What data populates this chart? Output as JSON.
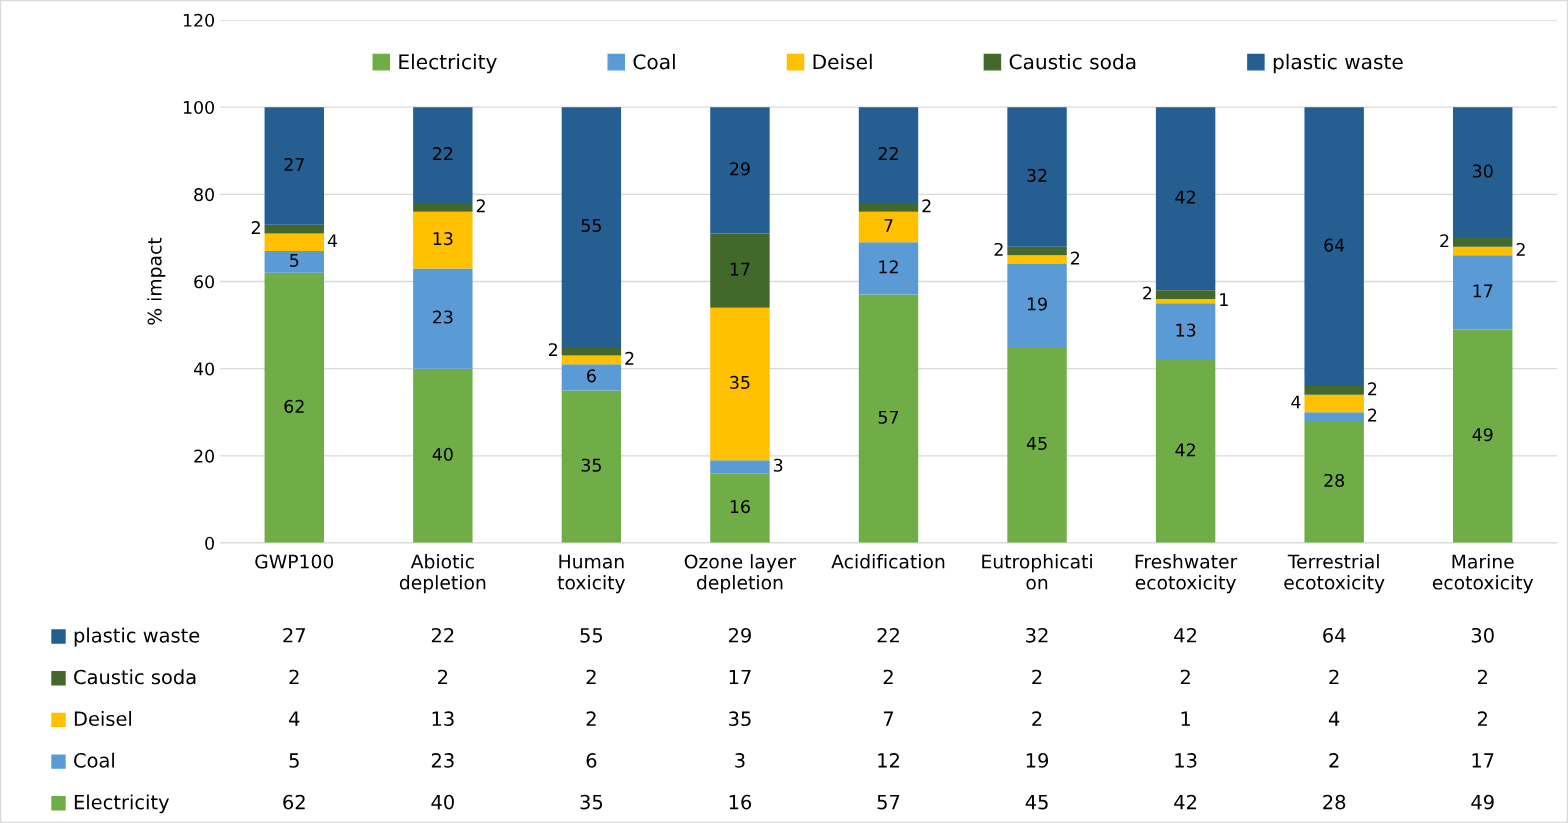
{
  "chart_data": {
    "type": "bar",
    "stacked": true,
    "ylabel": "% impact",
    "categories": [
      "GWP100",
      "Abiotic\ndepletion",
      "Human\ntoxicity",
      "Ozone layer\ndepletion",
      "Acidification",
      "Eutrophicati\non",
      "Freshwater\necotoxicity",
      "Terrestrial\necotoxicity",
      "Marine\necotoxicity"
    ],
    "series": [
      {
        "name": "Electricity",
        "color": "#70ad47",
        "values": [
          62,
          40,
          35,
          16,
          57,
          45,
          42,
          28,
          49
        ],
        "value_labels": [
          "62",
          "40",
          "35",
          "16",
          "57",
          "45",
          "42",
          "28",
          "49"
        ]
      },
      {
        "name": "Coal",
        "color": "#5b9bd5",
        "values": [
          5,
          23,
          6,
          3,
          12,
          19,
          13,
          2,
          17
        ],
        "value_labels": [
          "5",
          "23",
          "6",
          "3",
          "12",
          "19",
          "13",
          "2",
          "17"
        ]
      },
      {
        "name": "Deisel",
        "color": "#ffc000",
        "values": [
          4,
          13,
          2,
          35,
          7,
          2,
          1,
          4,
          2
        ],
        "value_labels": [
          "4",
          "13",
          "2",
          "35",
          "7",
          "2",
          "1",
          "4",
          "2"
        ]
      },
      {
        "name": "Caustic soda",
        "color": "#43682b",
        "values": [
          2,
          2,
          2,
          17,
          2,
          2,
          2,
          2,
          2
        ],
        "value_labels": [
          "2",
          "2",
          "2",
          "17",
          "2",
          "2",
          "2",
          "2",
          "2"
        ]
      },
      {
        "name": "plastic waste",
        "color": "#255e91",
        "values": [
          27,
          22,
          55,
          29,
          22,
          32,
          42,
          64,
          30
        ],
        "value_labels": [
          "27",
          "22",
          "55",
          "29",
          "22",
          "32",
          "42",
          "64",
          "30"
        ]
      }
    ],
    "ylim": [
      0,
      120
    ],
    "yticks": [
      0,
      20,
      40,
      60,
      80,
      100,
      120
    ],
    "grid": "y",
    "legend": "top",
    "data_labels": true
  }
}
